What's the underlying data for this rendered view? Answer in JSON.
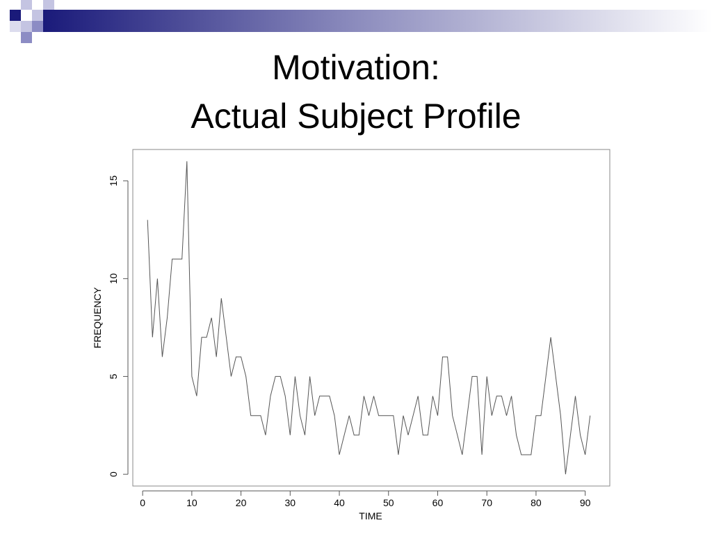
{
  "slide": {
    "title_line1": "Motivation:",
    "title_line2": "Actual Subject Profile",
    "accent_colors": [
      "#1a1a7a",
      "#8c8cc4",
      "#c4c4e2"
    ]
  },
  "chart_data": {
    "type": "line",
    "xlabel": "TIME",
    "ylabel": "FREQUENCY",
    "xlim": [
      -2,
      95
    ],
    "ylim": [
      -0.6,
      16.6
    ],
    "xticks": [
      0,
      10,
      20,
      30,
      40,
      50,
      60,
      70,
      80,
      90
    ],
    "yticks": [
      0,
      5,
      10,
      15
    ],
    "grid": false,
    "line_color": "#555555",
    "series": [
      {
        "x": [
          1,
          2,
          3,
          4,
          5,
          6,
          7,
          8,
          9,
          10,
          11,
          12,
          13,
          14,
          15,
          16,
          17,
          18,
          19,
          20,
          21,
          22,
          23,
          24,
          25,
          26,
          27,
          28,
          29,
          30,
          31,
          32,
          33,
          34,
          35,
          36,
          37,
          38,
          39,
          40,
          41,
          42,
          43,
          44,
          45,
          46,
          47,
          48,
          49,
          50,
          51,
          52,
          53,
          54,
          55,
          56,
          57,
          58,
          59,
          60,
          61,
          62,
          63,
          64,
          65,
          66,
          67,
          68,
          69,
          70,
          71,
          72,
          73,
          74,
          75,
          76,
          77,
          78,
          79,
          80,
          81,
          82,
          83,
          84,
          85,
          86,
          87,
          88,
          89,
          90,
          91
        ],
        "y": [
          13,
          7,
          10,
          6,
          8,
          11,
          11,
          11,
          16,
          5,
          4,
          7,
          7,
          8,
          6,
          9,
          7,
          5,
          6,
          6,
          5,
          3,
          3,
          3,
          2,
          4,
          5,
          5,
          4,
          2,
          5,
          3,
          2,
          5,
          3,
          4,
          4,
          4,
          3,
          1,
          2,
          3,
          2,
          2,
          4,
          3,
          4,
          3,
          3,
          3,
          3,
          1,
          3,
          2,
          3,
          4,
          2,
          2,
          4,
          3,
          6,
          6,
          3,
          2,
          1,
          3,
          5,
          5,
          1,
          5,
          3,
          4,
          4,
          3,
          4,
          2,
          1,
          1,
          1,
          3,
          3,
          5,
          7,
          5,
          3,
          0,
          2,
          4,
          2,
          1,
          3
        ]
      }
    ]
  }
}
